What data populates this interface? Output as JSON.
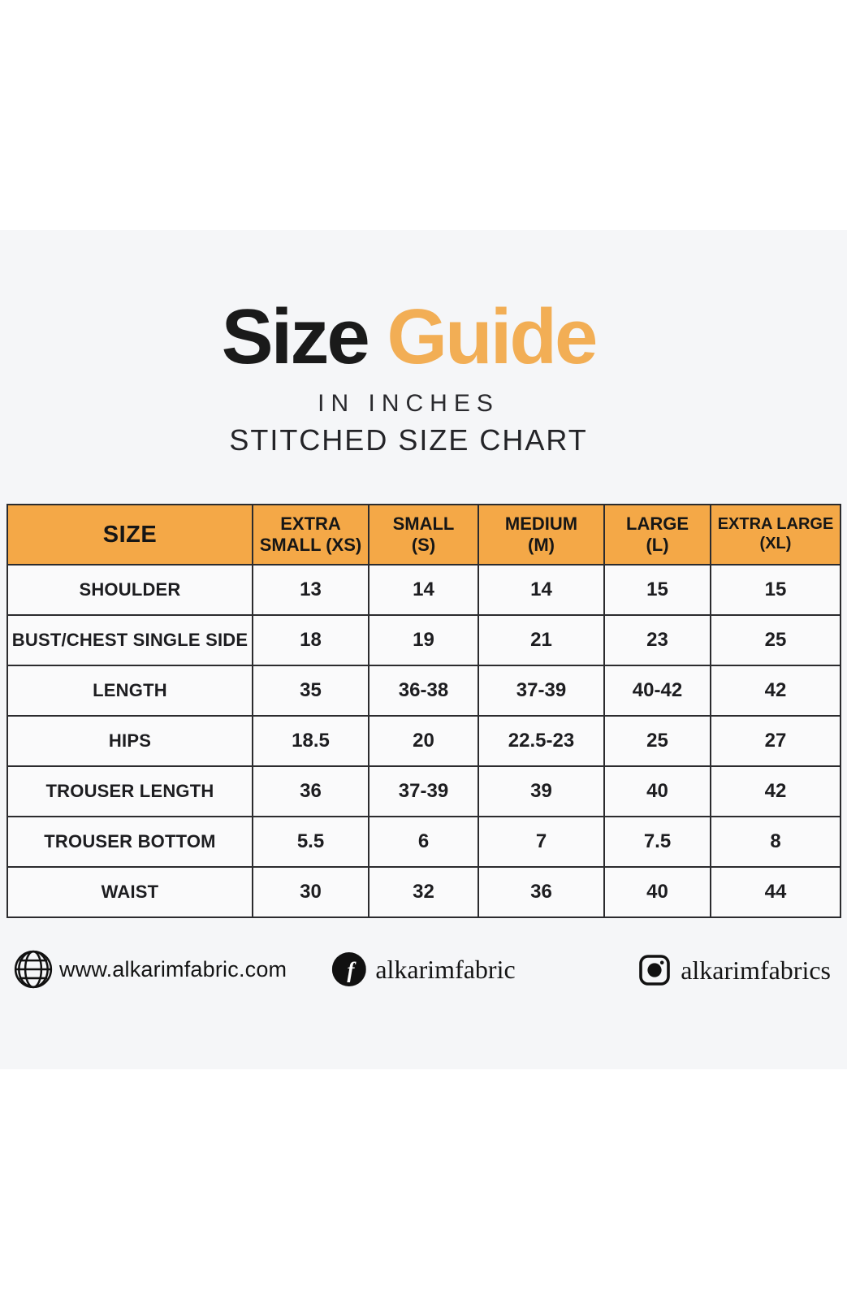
{
  "title": {
    "word_black": "Size",
    "word_orange": "Guide",
    "subtitle_units": "IN INCHES",
    "subtitle_chart": "STITCHED SIZE CHART"
  },
  "colors": {
    "title_orange": "#F2AE55",
    "header_orange": "#F4A847",
    "panel_background": "#F5F6F8",
    "cell_background": "#FAFAFB",
    "border": "#2B2B2E",
    "text": "#1D1D20"
  },
  "table": {
    "columns": [
      "SIZE",
      "EXTRA\nSMALL (XS)",
      "SMALL\n(S)",
      "MEDIUM\n(M)",
      "LARGE\n(L)",
      "EXTRA LARGE\n(XL)"
    ],
    "rows": [
      {
        "label": "SHOULDER",
        "values": [
          "13",
          "14",
          "14",
          "15",
          "15"
        ]
      },
      {
        "label": "BUST/CHEST SINGLE SIDE",
        "values": [
          "18",
          "19",
          "21",
          "23",
          "25"
        ]
      },
      {
        "label": "LENGTH",
        "values": [
          "35",
          "36-38",
          "37-39",
          "40-42",
          "42"
        ]
      },
      {
        "label": "HIPS",
        "values": [
          "18.5",
          "20",
          "22.5-23",
          "25",
          "27"
        ]
      },
      {
        "label": "TROUSER LENGTH",
        "values": [
          "36",
          "37-39",
          "39",
          "40",
          "42"
        ]
      },
      {
        "label": "TROUSER BOTTOM",
        "values": [
          "5.5",
          "6",
          "7",
          "7.5",
          "8"
        ]
      },
      {
        "label": "WAIST",
        "values": [
          "30",
          "32",
          "36",
          "40",
          "44"
        ]
      }
    ]
  },
  "footer": {
    "website": "www.alkarimfabric.com",
    "facebook_handle": "alkarimfabric",
    "instagram_handle": "alkarimfabrics",
    "icons": [
      "globe-icon",
      "facebook-icon",
      "instagram-icon"
    ]
  }
}
